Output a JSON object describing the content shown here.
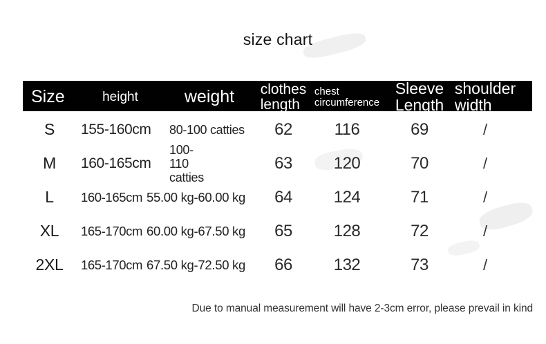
{
  "chart_data": {
    "type": "table",
    "title": "size chart",
    "columns": [
      "Size",
      "height",
      "weight",
      "clothes length",
      "chest circumference",
      "Sleeve Length",
      "shoulder width"
    ],
    "rows": [
      [
        "S",
        "155-160cm",
        "80-100 catties",
        "62",
        "116",
        "69",
        "/"
      ],
      [
        "M",
        "160-165cm",
        "100-110 catties",
        "63",
        "120",
        "70",
        "/"
      ],
      [
        "L",
        "160-165cm",
        "55.00 kg-60.00 kg",
        "64",
        "124",
        "71",
        "/"
      ],
      [
        "XL",
        "165-170cm",
        "60.00 kg-67.50 kg",
        "65",
        "128",
        "72",
        "/"
      ],
      [
        "2XL",
        "165-170cm",
        "67.50 kg-72.50 kg",
        "66",
        "132",
        "73",
        "/"
      ]
    ],
    "note": "Due to manual measurement will have 2-3cm error, please prevail in kind"
  },
  "colors": {
    "header_bg": "#000000",
    "header_text": "#ffffff",
    "body_text": "#222222",
    "note_text": "#333333",
    "background": "#ffffff"
  }
}
